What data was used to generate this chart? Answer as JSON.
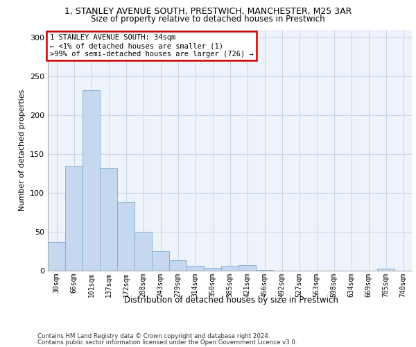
{
  "title1": "1, STANLEY AVENUE SOUTH, PRESTWICH, MANCHESTER, M25 3AR",
  "title2": "Size of property relative to detached houses in Prestwich",
  "xlabel": "Distribution of detached houses by size in Prestwich",
  "ylabel": "Number of detached properties",
  "bar_labels": [
    "30sqm",
    "66sqm",
    "101sqm",
    "137sqm",
    "172sqm",
    "208sqm",
    "243sqm",
    "279sqm",
    "314sqm",
    "350sqm",
    "385sqm",
    "421sqm",
    "456sqm",
    "492sqm",
    "527sqm",
    "563sqm",
    "598sqm",
    "634sqm",
    "669sqm",
    "705sqm",
    "740sqm"
  ],
  "bar_values": [
    37,
    135,
    232,
    132,
    88,
    50,
    25,
    13,
    6,
    4,
    6,
    7,
    1,
    0,
    0,
    0,
    0,
    0,
    0,
    3,
    0
  ],
  "bar_color": "#c5d8f0",
  "bar_edge_color": "#7bafd4",
  "annotation_text": "1 STANLEY AVENUE SOUTH: 34sqm\n← <1% of detached houses are smaller (1)\n>99% of semi-detached houses are larger (726) →",
  "annotation_box_color": "#ffffff",
  "annotation_box_edge": "#cc0000",
  "ylim": [
    0,
    310
  ],
  "yticks": [
    0,
    50,
    100,
    150,
    200,
    250,
    300
  ],
  "grid_color": "#c8d4e8",
  "background_color": "#eef2fb",
  "footer1": "Contains HM Land Registry data © Crown copyright and database right 2024.",
  "footer2": "Contains public sector information licensed under the Open Government Licence v3.0."
}
